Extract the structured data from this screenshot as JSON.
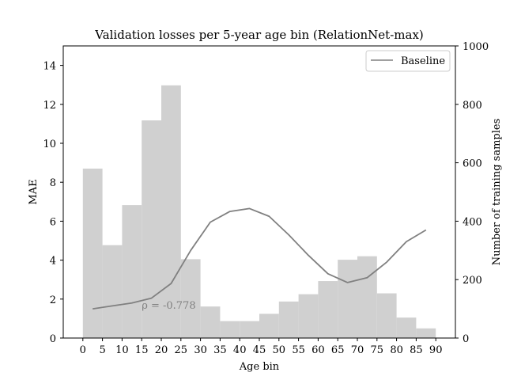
{
  "chart_data": {
    "type": "bar+line",
    "title": "Validation losses per 5-year age bin (RelationNet-max)",
    "xlabel": "Age bin",
    "ylabel_left": "MAE",
    "ylabel_right": "Number of training samples",
    "xlim": [
      -5,
      95
    ],
    "ylim_left": [
      0,
      15
    ],
    "ylim_right": [
      0,
      1000
    ],
    "xticks": [
      0,
      5,
      10,
      15,
      20,
      25,
      30,
      35,
      40,
      45,
      50,
      55,
      60,
      65,
      70,
      75,
      80,
      85,
      90
    ],
    "yticks_left": [
      0,
      2,
      4,
      6,
      8,
      10,
      12,
      14
    ],
    "yticks_right": [
      0,
      200,
      400,
      600,
      800,
      1000
    ],
    "grid": false,
    "legend_position": "top-right",
    "bars": {
      "axis": "right",
      "color": "#d0d0d0",
      "bin_starts": [
        0,
        5,
        10,
        15,
        20,
        25,
        30,
        35,
        40,
        45,
        50,
        55,
        60,
        65,
        70,
        75,
        80,
        85
      ],
      "bin_width": 5,
      "values": [
        580,
        318,
        455,
        745,
        865,
        270,
        108,
        58,
        58,
        83,
        125,
        150,
        195,
        268,
        280,
        153,
        70,
        33
      ]
    },
    "series": [
      {
        "name": "Baseline",
        "axis": "left",
        "color": "#808080",
        "x": [
          2.5,
          7.5,
          12.5,
          17.5,
          22.5,
          27.5,
          32.5,
          37.5,
          42.5,
          47.5,
          52.5,
          57.5,
          62.5,
          67.5,
          72.5,
          77.5,
          82.5,
          87.5
        ],
        "values": [
          1.5,
          1.65,
          1.8,
          2.05,
          2.8,
          4.5,
          5.95,
          6.5,
          6.65,
          6.25,
          5.3,
          4.25,
          3.3,
          2.85,
          3.1,
          3.9,
          4.95,
          5.55
        ]
      }
    ],
    "annotation": {
      "text": "ρ = -0.778",
      "x": 15,
      "y": 1.7,
      "color": "#808080"
    }
  }
}
